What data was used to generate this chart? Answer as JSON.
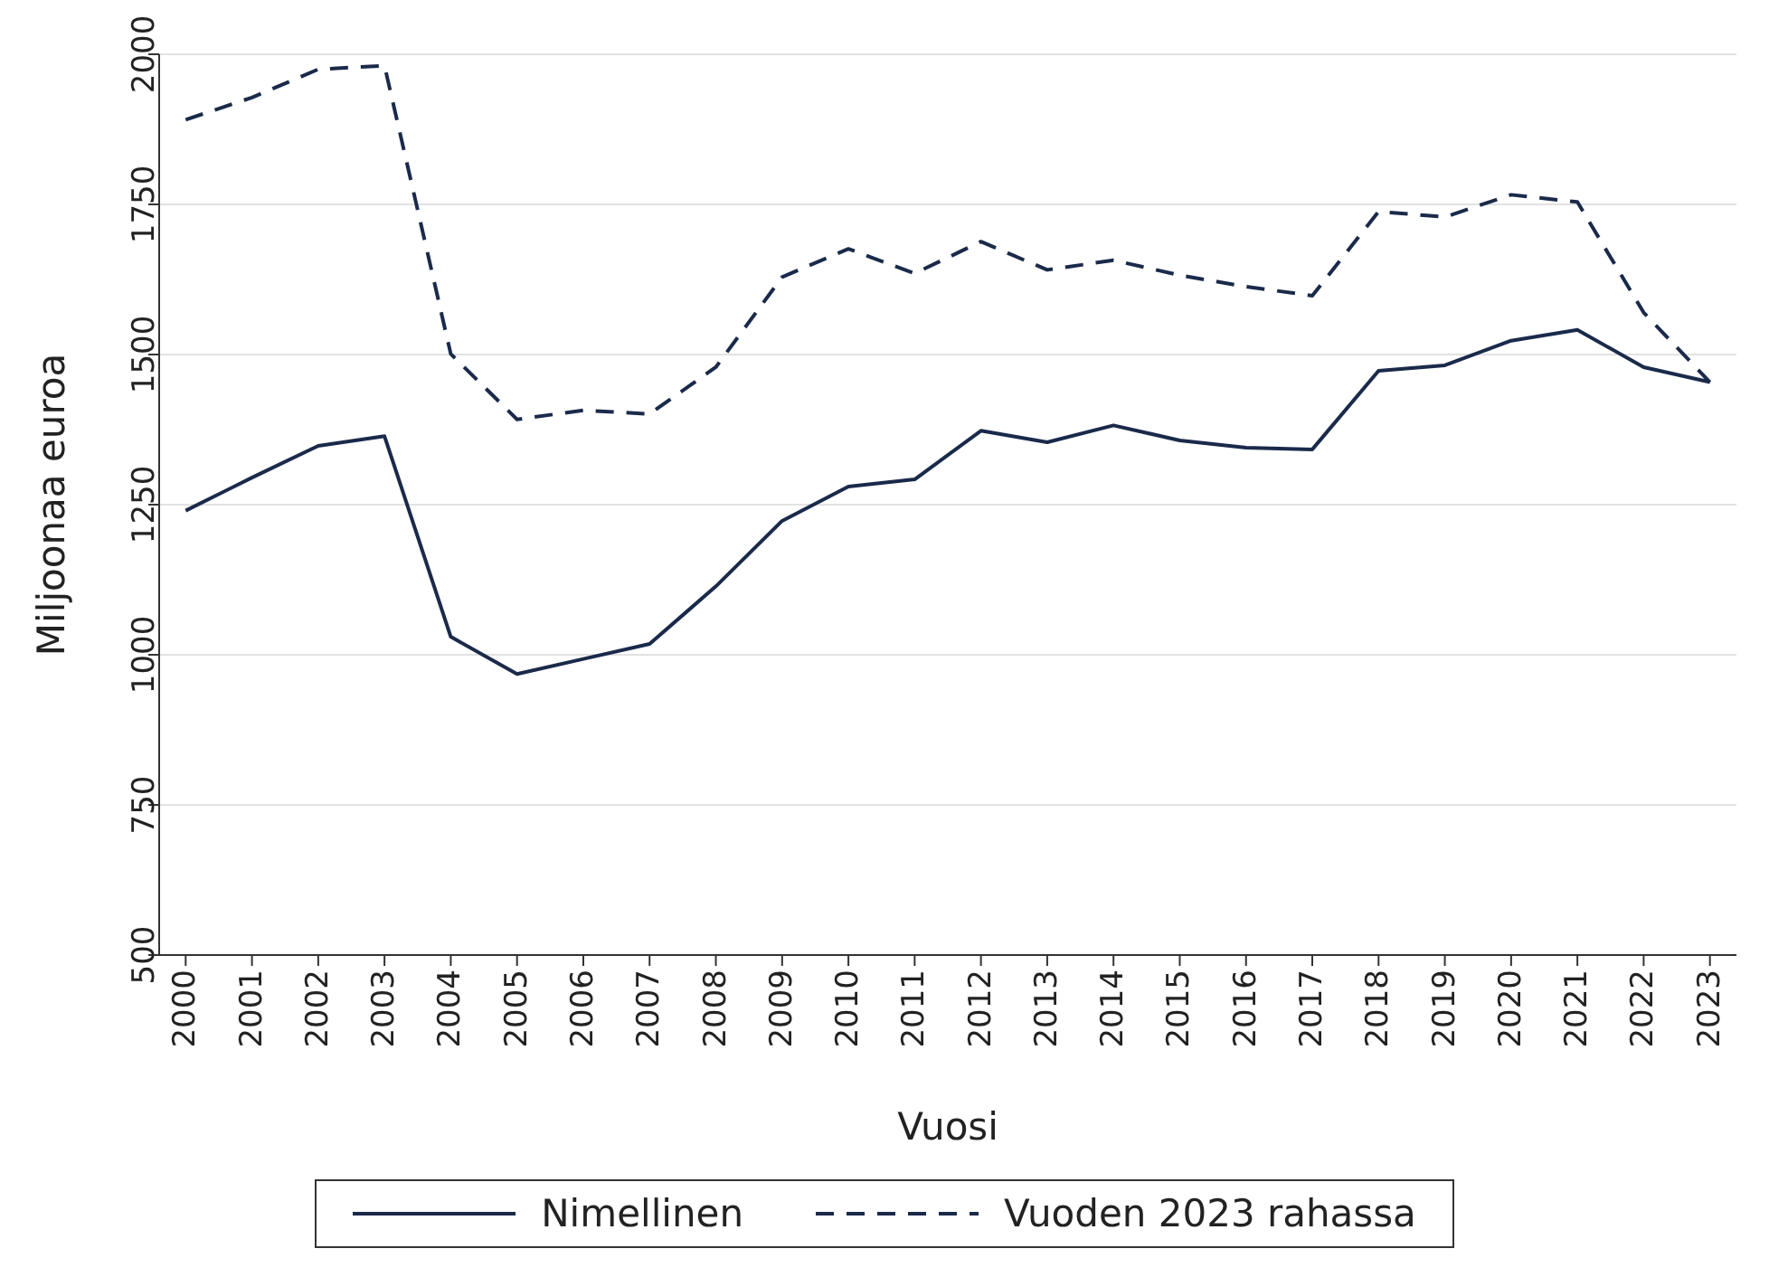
{
  "chart_data": {
    "type": "line",
    "xlabel": "Vuosi",
    "ylabel": "Miljoonaa euroa",
    "x": [
      2000,
      2001,
      2002,
      2003,
      2004,
      2005,
      2006,
      2007,
      2008,
      2009,
      2010,
      2011,
      2012,
      2013,
      2014,
      2015,
      2016,
      2017,
      2018,
      2019,
      2020,
      2021,
      2022,
      2023
    ],
    "xlim": [
      1999.6,
      2023.4
    ],
    "xticks": [
      2000,
      2001,
      2002,
      2003,
      2004,
      2005,
      2006,
      2007,
      2008,
      2009,
      2010,
      2011,
      2012,
      2013,
      2014,
      2015,
      2016,
      2017,
      2018,
      2019,
      2020,
      2021,
      2022,
      2023
    ],
    "ylim": [
      500,
      2000
    ],
    "yticks": [
      500,
      750,
      1000,
      1250,
      1500,
      1750,
      2000
    ],
    "grid": "y",
    "legend": "bottom",
    "marker": "none",
    "series": [
      {
        "name": "Nimellinen",
        "color": "#1a2a4a",
        "line_style": "solid",
        "values": [
          1240,
          1295,
          1348,
          1364,
          1030,
          968,
          993,
          1018,
          1114,
          1223,
          1280,
          1292,
          1373,
          1354,
          1382,
          1357,
          1345,
          1342,
          1473,
          1482,
          1523,
          1541,
          1479,
          1454
        ]
      },
      {
        "name": "Vuoden 2023 rahassa",
        "color": "#1a2a4a",
        "line_style": "dashed",
        "values": [
          1891,
          1928,
          1975,
          1981,
          1501,
          1392,
          1407,
          1401,
          1479,
          1629,
          1676,
          1635,
          1688,
          1641,
          1657,
          1632,
          1613,
          1598,
          1738,
          1729,
          1766,
          1754,
          1570,
          1454
        ]
      }
    ]
  }
}
